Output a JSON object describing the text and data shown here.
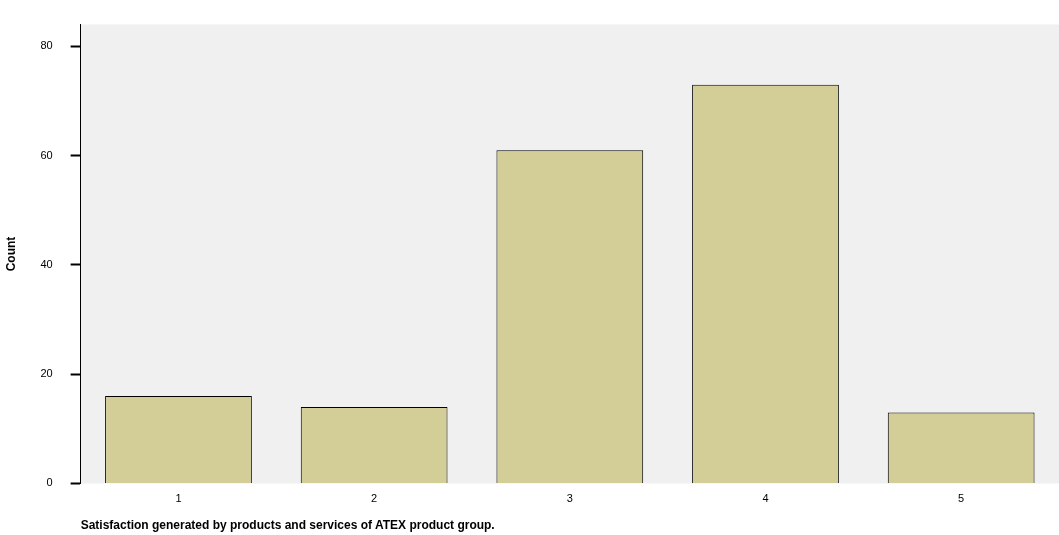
{
  "chart_data": {
    "type": "bar",
    "xlabel": "Satisfaction generated by products and services of ATEX product group.",
    "ylabel": "Count",
    "categories": [
      "1",
      "2",
      "3",
      "4",
      "5"
    ],
    "values": [
      16,
      14,
      61,
      73,
      13
    ],
    "color": "#d3cd98",
    "ylim": [
      0,
      84
    ],
    "yticks": [
      0,
      20,
      40,
      60,
      80
    ],
    "grid": false,
    "legend": false
  }
}
